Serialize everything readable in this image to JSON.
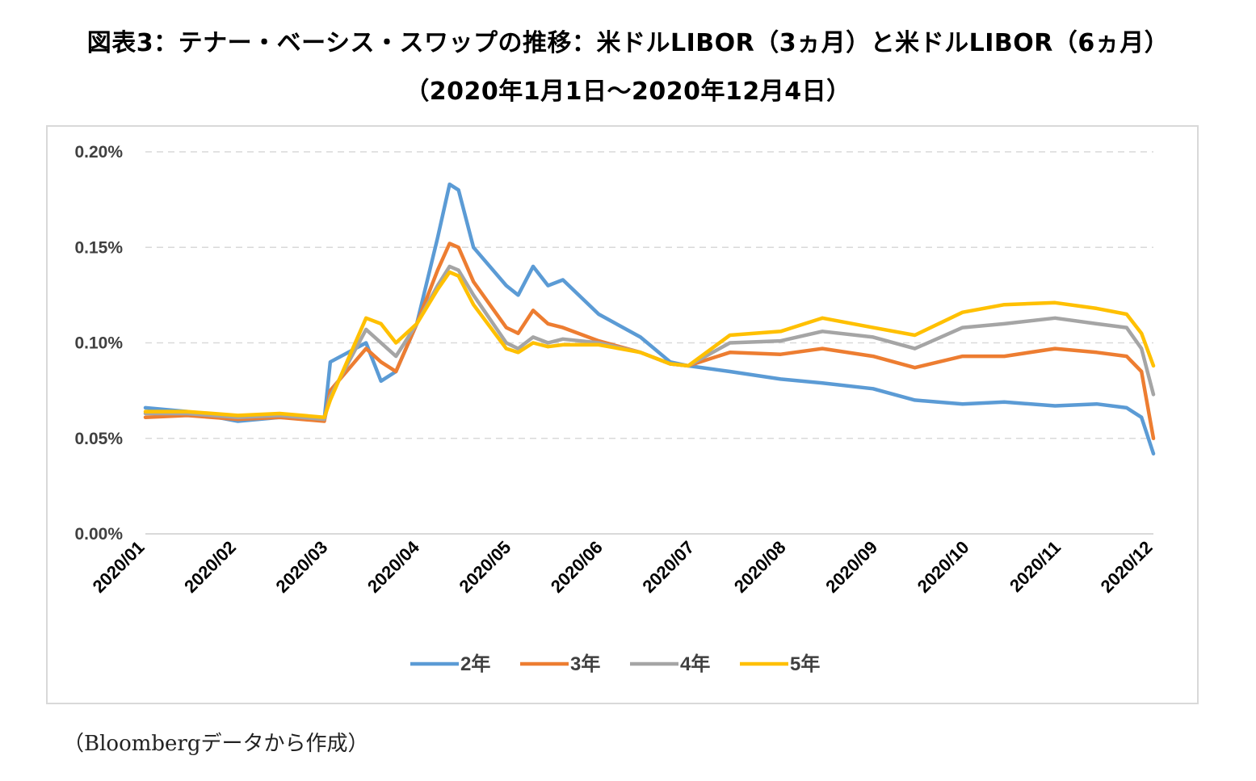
{
  "title_line1": "図表3：テナー・ベーシス・スワップの推移：米ドルLIBOR（3ヵ月）と米ドルLIBOR（6ヵ月）",
  "title_line2": "（2020年1月1日～2020年12月4日）",
  "source_note": "（Bloombergデータから作成）",
  "chart_data": {
    "type": "line",
    "title": "",
    "xlabel": "",
    "ylabel": "",
    "ylim": [
      0,
      0.2
    ],
    "y_unit": "%",
    "y_ticks": [
      "0.00%",
      "0.05%",
      "0.10%",
      "0.15%",
      "0.20%"
    ],
    "x_ticks": [
      "2020/01",
      "2020/02",
      "2020/03",
      "2020/04",
      "2020/05",
      "2020/06",
      "2020/07",
      "2020/08",
      "2020/09",
      "2020/10",
      "2020/11",
      "2020/12"
    ],
    "grid": "horizontal dashed",
    "legend_position": "bottom",
    "x": [
      "2020-01-01",
      "2020-01-15",
      "2020-02-01",
      "2020-02-15",
      "2020-03-01",
      "2020-03-03",
      "2020-03-15",
      "2020-03-20",
      "2020-03-25",
      "2020-04-01",
      "2020-04-08",
      "2020-04-12",
      "2020-04-15",
      "2020-04-20",
      "2020-05-01",
      "2020-05-05",
      "2020-05-10",
      "2020-05-15",
      "2020-05-20",
      "2020-06-01",
      "2020-06-15",
      "2020-06-25",
      "2020-07-01",
      "2020-07-15",
      "2020-08-01",
      "2020-08-15",
      "2020-09-01",
      "2020-09-15",
      "2020-10-01",
      "2020-10-15",
      "2020-11-01",
      "2020-11-15",
      "2020-11-25",
      "2020-11-30",
      "2020-12-04"
    ],
    "series": [
      {
        "name": "2年",
        "color": "#5b9bd5",
        "values": [
          0.066,
          0.064,
          0.059,
          0.061,
          0.06,
          0.09,
          0.1,
          0.08,
          0.085,
          0.11,
          0.155,
          0.183,
          0.18,
          0.15,
          0.13,
          0.125,
          0.14,
          0.13,
          0.133,
          0.115,
          0.103,
          0.09,
          0.088,
          0.085,
          0.081,
          0.079,
          0.076,
          0.07,
          0.068,
          0.069,
          0.067,
          0.068,
          0.066,
          0.061,
          0.042
        ]
      },
      {
        "name": "3年",
        "color": "#ed7d31",
        "values": [
          0.061,
          0.062,
          0.06,
          0.061,
          0.059,
          0.075,
          0.097,
          0.09,
          0.085,
          0.11,
          0.138,
          0.152,
          0.15,
          0.132,
          0.108,
          0.105,
          0.117,
          0.11,
          0.108,
          0.101,
          0.095,
          0.089,
          0.088,
          0.095,
          0.094,
          0.097,
          0.093,
          0.087,
          0.093,
          0.093,
          0.097,
          0.095,
          0.093,
          0.085,
          0.05
        ]
      },
      {
        "name": "4年",
        "color": "#a5a5a5",
        "values": [
          0.063,
          0.063,
          0.061,
          0.062,
          0.06,
          0.072,
          0.107,
          0.1,
          0.093,
          0.11,
          0.13,
          0.14,
          0.138,
          0.125,
          0.1,
          0.097,
          0.103,
          0.1,
          0.102,
          0.1,
          0.095,
          0.089,
          0.088,
          0.1,
          0.101,
          0.106,
          0.103,
          0.097,
          0.108,
          0.11,
          0.113,
          0.11,
          0.108,
          0.097,
          0.073
        ]
      },
      {
        "name": "5年",
        "color": "#ffc000",
        "values": [
          0.064,
          0.064,
          0.062,
          0.063,
          0.061,
          0.07,
          0.113,
          0.11,
          0.1,
          0.11,
          0.128,
          0.137,
          0.135,
          0.12,
          0.097,
          0.095,
          0.1,
          0.098,
          0.099,
          0.099,
          0.095,
          0.089,
          0.088,
          0.104,
          0.106,
          0.113,
          0.108,
          0.104,
          0.116,
          0.12,
          0.121,
          0.118,
          0.115,
          0.105,
          0.088
        ]
      }
    ]
  }
}
